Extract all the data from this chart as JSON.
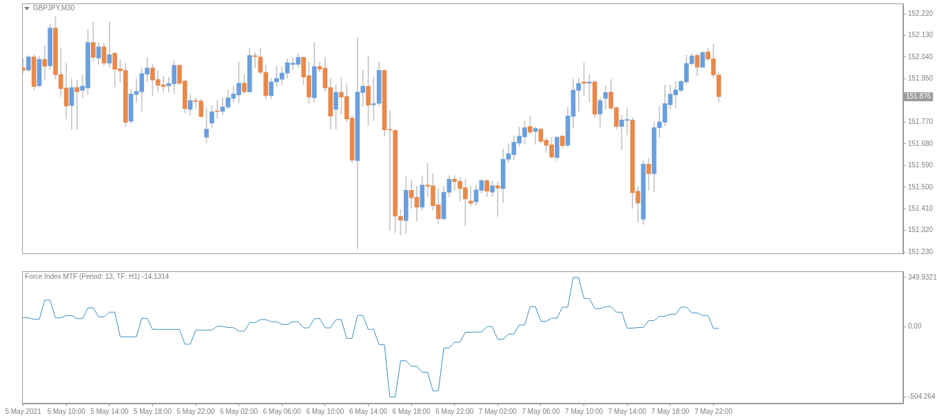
{
  "chart_data": [
    {
      "type": "candlestick",
      "title": "GBPJPY,M30",
      "x": [
        "2021-05-05T06:00",
        "2021-05-05T06:30",
        "2021-05-05T07:00",
        "2021-05-05T07:30",
        "2021-05-05T08:00",
        "2021-05-05T08:30",
        "2021-05-05T09:00",
        "2021-05-05T09:30",
        "2021-05-05T10:00",
        "2021-05-05T10:30",
        "2021-05-05T11:00",
        "2021-05-05T11:30",
        "2021-05-05T12:00",
        "2021-05-05T12:30",
        "2021-05-05T13:00",
        "2021-05-05T13:30",
        "2021-05-05T14:00",
        "2021-05-05T14:30",
        "2021-05-05T15:00",
        "2021-05-05T15:30",
        "2021-05-05T16:00",
        "2021-05-05T16:30",
        "2021-05-05T17:00",
        "2021-05-05T17:30",
        "2021-05-05T18:00",
        "2021-05-05T18:30",
        "2021-05-05T19:00",
        "2021-05-05T19:30",
        "2021-05-05T20:00",
        "2021-05-05T20:30",
        "2021-05-05T21:00",
        "2021-05-05T21:30",
        "2021-05-05T22:00",
        "2021-05-05T22:30",
        "2021-05-05T23:00",
        "2021-05-05T23:30",
        "2021-05-06T00:00",
        "2021-05-06T00:30",
        "2021-05-06T01:00",
        "2021-05-06T01:30",
        "2021-05-06T02:00",
        "2021-05-06T02:30",
        "2021-05-06T03:00",
        "2021-05-06T03:30",
        "2021-05-06T04:00",
        "2021-05-06T04:30",
        "2021-05-06T05:00",
        "2021-05-06T05:30",
        "2021-05-06T06:00",
        "2021-05-06T06:30",
        "2021-05-06T07:00",
        "2021-05-06T07:30",
        "2021-05-06T08:00",
        "2021-05-06T08:30",
        "2021-05-06T09:00",
        "2021-05-06T09:30",
        "2021-05-06T10:00",
        "2021-05-06T10:30",
        "2021-05-06T11:00",
        "2021-05-06T11:30",
        "2021-05-06T12:00",
        "2021-05-06T12:30",
        "2021-05-06T13:00",
        "2021-05-06T13:30",
        "2021-05-06T14:00",
        "2021-05-06T14:30",
        "2021-05-06T15:00",
        "2021-05-06T15:30",
        "2021-05-06T16:00",
        "2021-05-06T16:30",
        "2021-05-06T17:00",
        "2021-05-06T17:30",
        "2021-05-06T18:00",
        "2021-05-06T18:30",
        "2021-05-06T19:00",
        "2021-05-06T19:30",
        "2021-05-06T20:00",
        "2021-05-06T20:30",
        "2021-05-06T21:00",
        "2021-05-06T21:30",
        "2021-05-06T22:00",
        "2021-05-06T22:30",
        "2021-05-06T23:00",
        "2021-05-06T23:30",
        "2021-05-07T00:00",
        "2021-05-07T00:30",
        "2021-05-07T01:00",
        "2021-05-07T01:30",
        "2021-05-07T02:00",
        "2021-05-07T02:30",
        "2021-05-07T03:00",
        "2021-05-07T03:30",
        "2021-05-07T04:00",
        "2021-05-07T04:30",
        "2021-05-07T05:00",
        "2021-05-07T05:30",
        "2021-05-07T06:00",
        "2021-05-07T06:30",
        "2021-05-07T07:00",
        "2021-05-07T07:30",
        "2021-05-07T08:00",
        "2021-05-07T08:30",
        "2021-05-07T09:00",
        "2021-05-07T09:30",
        "2021-05-07T10:00",
        "2021-05-07T10:30",
        "2021-05-07T11:00",
        "2021-05-07T11:30",
        "2021-05-07T12:00",
        "2021-05-07T12:30",
        "2021-05-07T13:00",
        "2021-05-07T13:30",
        "2021-05-07T14:00",
        "2021-05-07T14:30",
        "2021-05-07T15:00",
        "2021-05-07T15:30",
        "2021-05-07T16:00",
        "2021-05-07T16:30",
        "2021-05-07T17:00",
        "2021-05-07T17:30",
        "2021-05-07T18:00",
        "2021-05-07T18:30",
        "2021-05-07T19:00",
        "2021-05-07T19:30",
        "2021-05-07T20:00",
        "2021-05-07T20:30",
        "2021-05-07T21:00",
        "2021-05-07T21:30",
        "2021-05-07T22:00",
        "2021-05-07T22:30"
      ],
      "ohlc": [
        [
          151.995,
          152.033,
          151.975,
          151.986
        ],
        [
          151.986,
          152.047,
          151.979,
          152.041
        ],
        [
          152.041,
          152.051,
          151.905,
          151.918
        ],
        [
          151.921,
          152.044,
          151.916,
          152.031
        ],
        [
          152.031,
          152.087,
          151.948,
          152.002
        ],
        [
          152.004,
          152.178,
          151.988,
          152.161
        ],
        [
          152.161,
          152.209,
          151.948,
          151.967
        ],
        [
          151.968,
          152.079,
          151.876,
          151.909
        ],
        [
          151.912,
          152.015,
          151.783,
          151.837
        ],
        [
          151.839,
          151.952,
          151.74,
          151.914
        ],
        [
          151.914,
          151.944,
          151.74,
          151.896
        ],
        [
          151.902,
          151.966,
          151.871,
          151.92
        ],
        [
          151.912,
          152.155,
          151.885,
          152.101
        ],
        [
          152.101,
          152.187,
          152.024,
          152.039
        ],
        [
          152.036,
          152.101,
          152.011,
          152.083
        ],
        [
          152.083,
          152.096,
          152.006,
          152.015
        ],
        [
          152.015,
          152.187,
          151.997,
          152.05
        ],
        [
          152.056,
          152.06,
          151.916,
          151.99
        ],
        [
          151.992,
          152.029,
          151.934,
          151.983
        ],
        [
          151.985,
          152.015,
          151.751,
          151.769
        ],
        [
          151.774,
          151.907,
          151.765,
          151.887
        ],
        [
          151.885,
          151.952,
          151.853,
          151.898
        ],
        [
          151.896,
          151.997,
          151.815,
          151.972
        ],
        [
          151.969,
          152.038,
          151.936,
          151.995
        ],
        [
          151.995,
          152.011,
          151.88,
          151.945
        ],
        [
          151.947,
          151.984,
          151.894,
          151.923
        ],
        [
          151.925,
          151.961,
          151.894,
          151.918
        ],
        [
          151.921,
          151.957,
          151.894,
          151.931
        ],
        [
          151.929,
          152.024,
          151.889,
          152.006
        ],
        [
          152.006,
          152.01,
          151.925,
          151.931
        ],
        [
          151.941,
          151.944,
          151.808,
          151.826
        ],
        [
          151.823,
          151.885,
          151.799,
          151.86
        ],
        [
          151.86,
          151.871,
          151.826,
          151.856
        ],
        [
          151.858,
          151.866,
          151.79,
          151.793
        ],
        [
          151.707,
          151.829,
          151.684,
          151.741
        ],
        [
          151.766,
          151.839,
          151.749,
          151.813
        ],
        [
          151.817,
          151.86,
          151.785,
          151.814
        ],
        [
          151.815,
          151.873,
          151.801,
          151.833
        ],
        [
          151.833,
          151.903,
          151.826,
          151.871
        ],
        [
          151.869,
          151.921,
          151.853,
          151.887
        ],
        [
          151.883,
          152.02,
          151.849,
          151.932
        ],
        [
          151.932,
          151.97,
          151.889,
          151.896
        ],
        [
          151.896,
          152.079,
          151.894,
          152.047
        ],
        [
          152.046,
          152.06,
          151.997,
          152.042
        ],
        [
          152.041,
          152.079,
          151.97,
          151.977
        ],
        [
          151.977,
          152.006,
          151.866,
          151.88
        ],
        [
          151.88,
          151.952,
          151.866,
          151.937
        ],
        [
          151.937,
          152.002,
          151.916,
          151.952
        ],
        [
          151.948,
          152.002,
          151.925,
          151.974
        ],
        [
          151.974,
          152.033,
          151.952,
          152.017
        ],
        [
          152.01,
          152.038,
          151.988,
          152.015
        ],
        [
          152.01,
          152.056,
          151.997,
          152.039
        ],
        [
          152.039,
          152.042,
          151.925,
          151.957
        ],
        [
          151.963,
          152.02,
          151.849,
          151.874
        ],
        [
          151.871,
          152.101,
          151.853,
          152.001
        ],
        [
          152.001,
          152.02,
          151.979,
          151.99
        ],
        [
          151.994,
          152.038,
          151.898,
          151.912
        ],
        [
          151.914,
          151.952,
          151.74,
          151.795
        ],
        [
          151.823,
          151.925,
          151.74,
          151.894
        ],
        [
          151.894,
          151.957,
          151.803,
          151.874
        ],
        [
          151.877,
          151.93,
          151.772,
          151.783
        ],
        [
          151.787,
          151.799,
          151.601,
          151.612
        ],
        [
          151.61,
          152.122,
          151.244,
          151.895
        ],
        [
          151.893,
          151.988,
          151.835,
          151.92
        ],
        [
          151.919,
          152.045,
          151.755,
          151.84
        ],
        [
          151.842,
          151.958,
          151.776,
          151.847
        ],
        [
          151.848,
          152.021,
          151.837,
          151.985
        ],
        [
          151.985,
          151.987,
          151.712,
          151.738
        ],
        [
          151.739,
          151.818,
          151.32,
          151.737
        ],
        [
          151.736,
          151.738,
          151.311,
          151.38
        ],
        [
          151.379,
          151.407,
          151.301,
          151.363
        ],
        [
          151.361,
          151.543,
          151.306,
          151.487
        ],
        [
          151.487,
          151.528,
          151.412,
          151.456
        ],
        [
          151.458,
          151.504,
          151.359,
          151.417
        ],
        [
          151.417,
          151.548,
          151.403,
          151.509
        ],
        [
          151.509,
          151.601,
          151.46,
          151.504
        ],
        [
          151.506,
          151.557,
          151.403,
          151.423
        ],
        [
          151.427,
          151.494,
          151.349,
          151.369
        ],
        [
          151.369,
          151.504,
          151.364,
          151.479
        ],
        [
          151.479,
          151.548,
          151.46,
          151.533
        ],
        [
          151.533,
          151.548,
          151.485,
          151.523
        ],
        [
          151.525,
          151.538,
          151.441,
          151.494
        ],
        [
          151.498,
          151.533,
          151.34,
          151.451
        ],
        [
          151.443,
          151.504,
          151.422,
          151.433
        ],
        [
          151.439,
          151.509,
          151.427,
          151.489
        ],
        [
          151.487,
          151.533,
          151.475,
          151.527
        ],
        [
          151.527,
          151.533,
          151.46,
          151.483
        ],
        [
          151.479,
          151.525,
          151.46,
          151.506
        ],
        [
          151.506,
          151.523,
          151.378,
          151.496
        ],
        [
          151.494,
          151.658,
          151.436,
          151.616
        ],
        [
          151.616,
          151.68,
          151.601,
          151.639
        ],
        [
          151.635,
          151.712,
          151.615,
          151.687
        ],
        [
          151.683,
          151.75,
          151.668,
          151.712
        ],
        [
          151.709,
          151.774,
          151.678,
          151.747
        ],
        [
          151.752,
          151.796,
          151.721,
          151.728
        ],
        [
          151.731,
          151.75,
          151.678,
          151.744
        ],
        [
          151.741,
          151.746,
          151.683,
          151.69
        ],
        [
          151.695,
          151.707,
          151.644,
          151.674
        ],
        [
          151.676,
          151.707,
          151.62,
          151.625
        ],
        [
          151.623,
          151.714,
          151.61,
          151.707
        ],
        [
          151.712,
          151.717,
          151.663,
          151.672
        ],
        [
          151.674,
          151.832,
          151.668,
          151.796
        ],
        [
          151.794,
          151.948,
          151.746,
          151.903
        ],
        [
          151.902,
          151.953,
          151.813,
          151.931
        ],
        [
          151.937,
          152.016,
          151.881,
          151.931
        ],
        [
          151.932,
          151.968,
          151.852,
          151.937
        ],
        [
          151.937,
          151.944,
          151.789,
          151.803
        ],
        [
          151.804,
          151.871,
          151.75,
          151.86
        ],
        [
          151.868,
          151.921,
          151.823,
          151.893
        ],
        [
          151.895,
          151.948,
          151.823,
          151.828
        ],
        [
          151.83,
          151.832,
          151.741,
          151.752
        ],
        [
          151.752,
          151.799,
          151.654,
          151.779
        ],
        [
          151.777,
          151.83,
          151.717,
          151.781
        ],
        [
          151.779,
          151.789,
          151.412,
          151.477
        ],
        [
          151.483,
          151.502,
          151.354,
          151.434
        ],
        [
          151.367,
          151.61,
          151.345,
          151.596
        ],
        [
          151.596,
          151.62,
          151.485,
          151.556
        ],
        [
          151.556,
          151.77,
          151.48,
          151.747
        ],
        [
          151.747,
          151.837,
          151.707,
          151.771
        ],
        [
          151.77,
          151.924,
          151.755,
          151.847
        ],
        [
          151.842,
          151.924,
          151.823,
          151.886
        ],
        [
          151.883,
          151.939,
          151.828,
          151.904
        ],
        [
          151.902,
          151.944,
          151.895,
          151.939
        ],
        [
          151.937,
          152.05,
          151.929,
          152.014
        ],
        [
          152.013,
          152.055,
          152.006,
          152.045
        ],
        [
          152.047,
          152.055,
          151.963,
          151.998
        ],
        [
          151.998,
          152.064,
          151.997,
          152.059
        ],
        [
          152.062,
          152.079,
          152.026,
          152.032
        ],
        [
          152.033,
          152.093,
          151.953,
          151.966
        ],
        [
          151.966,
          151.977,
          151.852,
          151.876
        ]
      ],
      "colors": [
        "#e8894b",
        "#6a9fdc",
        "#e8894b",
        "#6a9fdc",
        "#e8894b",
        "#6a9fdc",
        "#e8894b",
        "#e8894b",
        "#e8894b",
        "#6a9fdc",
        "#e8894b",
        "#6a9fdc",
        "#6a9fdc",
        "#e8894b",
        "#6a9fdc",
        "#e8894b",
        "#6a9fdc",
        "#e8894b",
        "#e8894b",
        "#e8894b",
        "#6a9fdc",
        "#6a9fdc",
        "#6a9fdc",
        "#6a9fdc",
        "#e8894b",
        "#e8894b",
        "#e8894b",
        "#6a9fdc",
        "#6a9fdc",
        "#e8894b",
        "#e8894b",
        "#6a9fdc",
        "#e8894b",
        "#e8894b",
        "#6a9fdc",
        "#6a9fdc",
        "#e8894b",
        "#6a9fdc",
        "#6a9fdc",
        "#6a9fdc",
        "#6a9fdc",
        "#e8894b",
        "#6a9fdc",
        "#e8894b",
        "#e8894b",
        "#e8894b",
        "#6a9fdc",
        "#6a9fdc",
        "#6a9fdc",
        "#6a9fdc",
        "#6a9fdc",
        "#6a9fdc",
        "#e8894b",
        "#e8894b",
        "#6a9fdc",
        "#e8894b",
        "#e8894b",
        "#e8894b",
        "#6a9fdc",
        "#e8894b",
        "#e8894b",
        "#e8894b",
        "#6a9fdc",
        "#6a9fdc",
        "#e8894b",
        "#6a9fdc",
        "#6a9fdc",
        "#e8894b",
        "#e8894b",
        "#e8894b",
        "#e8894b",
        "#6a9fdc",
        "#e8894b",
        "#e8894b",
        "#6a9fdc",
        "#e8894b",
        "#e8894b",
        "#e8894b",
        "#6a9fdc",
        "#6a9fdc",
        "#e8894b",
        "#e8894b",
        "#e8894b",
        "#e8894b",
        "#6a9fdc",
        "#6a9fdc",
        "#e8894b",
        "#6a9fdc",
        "#e8894b",
        "#6a9fdc",
        "#6a9fdc",
        "#6a9fdc",
        "#6a9fdc",
        "#6a9fdc",
        "#e8894b",
        "#6a9fdc",
        "#e8894b",
        "#e8894b",
        "#e8894b",
        "#6a9fdc",
        "#e8894b",
        "#6a9fdc",
        "#6a9fdc",
        "#6a9fdc",
        "#e8894b",
        "#6a9fdc",
        "#e8894b",
        "#6a9fdc",
        "#6a9fdc",
        "#e8894b",
        "#e8894b",
        "#6a9fdc",
        "#6a9fdc",
        "#e8894b",
        "#e8894b",
        "#6a9fdc",
        "#e8894b",
        "#6a9fdc",
        "#6a9fdc",
        "#6a9fdc",
        "#6a9fdc",
        "#6a9fdc",
        "#6a9fdc",
        "#6a9fdc",
        "#6a9fdc",
        "#e8894b",
        "#6a9fdc",
        "#e8894b",
        "#e8894b",
        "#e8894b"
      ],
      "xlim": [
        "2021-05-05T05:54",
        "2021-05-08T15:36"
      ],
      "ylim": [
        151.222,
        152.263
      ],
      "yticks": [
        {
          "value": 152.22,
          "label": "152.220"
        },
        {
          "value": 152.13,
          "label": "152.130"
        },
        {
          "value": 152.04,
          "label": "152.040"
        },
        {
          "value": 151.95,
          "label": "151.950"
        },
        {
          "value": 151.86,
          "label": null
        },
        {
          "value": 151.77,
          "label": "151.770"
        },
        {
          "value": 151.68,
          "label": "151.680"
        },
        {
          "value": 151.59,
          "label": "151.590"
        },
        {
          "value": 151.5,
          "label": "151.500"
        },
        {
          "value": 151.41,
          "label": "151.410"
        },
        {
          "value": 151.32,
          "label": "151.320"
        },
        {
          "value": 151.23,
          "label": "151.230"
        }
      ],
      "tick_labels": "y",
      "annotations": [
        {
          "text": "151.876",
          "y": 151.876
        }
      ]
    },
    {
      "type": "line",
      "title": "Force Index MTF (Period: 13, TF: H1) -14.1314",
      "x": [
        "2021-05-05T06:00",
        "2021-05-05T06:30",
        "2021-05-05T07:00",
        "2021-05-05T07:30",
        "2021-05-05T08:00",
        "2021-05-05T08:30",
        "2021-05-05T09:00",
        "2021-05-05T09:30",
        "2021-05-05T10:00",
        "2021-05-05T10:30",
        "2021-05-05T11:00",
        "2021-05-05T11:30",
        "2021-05-05T12:00",
        "2021-05-05T12:30",
        "2021-05-05T13:00",
        "2021-05-05T13:30",
        "2021-05-05T14:00",
        "2021-05-05T14:30",
        "2021-05-05T15:00",
        "2021-05-05T15:30",
        "2021-05-05T16:00",
        "2021-05-05T16:30",
        "2021-05-05T17:00",
        "2021-05-05T17:30",
        "2021-05-05T18:00",
        "2021-05-05T18:30",
        "2021-05-05T19:00",
        "2021-05-05T19:30",
        "2021-05-05T20:00",
        "2021-05-05T20:30",
        "2021-05-05T21:00",
        "2021-05-05T21:30",
        "2021-05-05T22:00",
        "2021-05-05T22:30",
        "2021-05-05T23:00",
        "2021-05-05T23:30",
        "2021-05-06T00:00",
        "2021-05-06T00:30",
        "2021-05-06T01:00",
        "2021-05-06T01:30",
        "2021-05-06T02:00",
        "2021-05-06T02:30",
        "2021-05-06T03:00",
        "2021-05-06T03:30",
        "2021-05-06T04:00",
        "2021-05-06T04:30",
        "2021-05-06T05:00",
        "2021-05-06T05:30",
        "2021-05-06T06:00",
        "2021-05-06T06:30",
        "2021-05-06T07:00",
        "2021-05-06T07:30",
        "2021-05-06T08:00",
        "2021-05-06T08:30",
        "2021-05-06T09:00",
        "2021-05-06T09:30",
        "2021-05-06T10:00",
        "2021-05-06T10:30",
        "2021-05-06T11:00",
        "2021-05-06T11:30",
        "2021-05-06T12:00",
        "2021-05-06T12:30",
        "2021-05-06T13:00",
        "2021-05-06T13:30",
        "2021-05-06T14:00",
        "2021-05-06T14:30",
        "2021-05-06T15:00",
        "2021-05-06T15:30",
        "2021-05-06T16:00",
        "2021-05-06T16:30",
        "2021-05-06T17:00",
        "2021-05-06T17:30",
        "2021-05-06T18:00",
        "2021-05-06T18:30",
        "2021-05-06T19:00",
        "2021-05-06T19:30",
        "2021-05-06T20:00",
        "2021-05-06T20:30",
        "2021-05-06T21:00",
        "2021-05-06T21:30",
        "2021-05-06T22:00",
        "2021-05-06T22:30",
        "2021-05-06T23:00",
        "2021-05-06T23:30",
        "2021-05-07T00:00",
        "2021-05-07T00:30",
        "2021-05-07T01:00",
        "2021-05-07T01:30",
        "2021-05-07T02:00",
        "2021-05-07T02:30",
        "2021-05-07T03:00",
        "2021-05-07T03:30",
        "2021-05-07T04:00",
        "2021-05-07T04:30",
        "2021-05-07T05:00",
        "2021-05-07T05:30",
        "2021-05-07T06:00",
        "2021-05-07T06:30",
        "2021-05-07T07:00",
        "2021-05-07T07:30",
        "2021-05-07T08:00",
        "2021-05-07T08:30",
        "2021-05-07T09:00",
        "2021-05-07T09:30",
        "2021-05-07T10:00",
        "2021-05-07T10:30",
        "2021-05-07T11:00",
        "2021-05-07T11:30",
        "2021-05-07T12:00",
        "2021-05-07T12:30",
        "2021-05-07T13:00",
        "2021-05-07T13:30",
        "2021-05-07T14:00",
        "2021-05-07T14:30",
        "2021-05-07T15:00",
        "2021-05-07T15:30",
        "2021-05-07T16:00",
        "2021-05-07T16:30",
        "2021-05-07T17:00",
        "2021-05-07T17:30",
        "2021-05-07T18:00",
        "2021-05-07T18:30",
        "2021-05-07T19:00",
        "2021-05-07T19:30",
        "2021-05-07T20:00",
        "2021-05-07T20:30",
        "2021-05-07T21:00",
        "2021-05-07T21:30",
        "2021-05-07T22:00",
        "2021-05-07T22:30"
      ],
      "values": [
        62,
        62,
        51,
        51,
        188,
        188,
        62,
        62,
        78,
        78,
        56,
        56,
        133,
        133,
        69,
        69,
        102,
        102,
        -74,
        -74,
        -74,
        -74,
        58,
        58,
        -21,
        -21,
        -21,
        -21,
        -21,
        -21,
        -127,
        -127,
        -26,
        -26,
        -26,
        -26,
        1,
        1,
        -8,
        -8,
        -34,
        -34,
        27,
        27,
        49,
        49,
        34,
        34,
        14,
        14,
        34,
        34,
        -10,
        -10,
        56,
        56,
        -10,
        -10,
        49,
        49,
        -85,
        -85,
        78,
        78,
        -21,
        -21,
        -131,
        -131,
        -504,
        -504,
        -245,
        -245,
        -285,
        -285,
        -327,
        -327,
        -461,
        -461,
        -153,
        -153,
        -113,
        -113,
        -41,
        -41,
        -40,
        -40,
        -1,
        -1,
        -91,
        -91,
        -55,
        -55,
        10,
        10,
        142,
        142,
        37,
        37,
        59,
        59,
        138,
        138,
        350,
        350,
        200,
        200,
        127,
        127,
        142,
        142,
        102,
        102,
        -12,
        -12,
        -8,
        -8,
        42,
        42,
        72,
        72,
        87,
        87,
        138,
        138,
        97,
        97,
        78,
        78,
        -14,
        -14
      ],
      "color": "#3b8dbd",
      "marker": "none",
      "xlim": [
        "2021-05-05T05:54",
        "2021-05-08T15:36"
      ],
      "xticks": [
        {
          "value": "2021-05-05T06:00",
          "label": "5 May 2021"
        },
        {
          "value": "2021-05-05T10:00",
          "label": "5 May 10:00"
        },
        {
          "value": "2021-05-05T14:00",
          "label": "5 May 14:00"
        },
        {
          "value": "2021-05-05T18:00",
          "label": "5 May 18:00"
        },
        {
          "value": "2021-05-05T22:00",
          "label": "5 May 22:00"
        },
        {
          "value": "2021-05-06T02:00",
          "label": "6 May 02:00"
        },
        {
          "value": "2021-05-06T06:00",
          "label": "6 May 06:00"
        },
        {
          "value": "2021-05-06T10:00",
          "label": "6 May 10:00"
        },
        {
          "value": "2021-05-06T14:00",
          "label": "6 May 14:00"
        },
        {
          "value": "2021-05-06T18:00",
          "label": "6 May 18:00"
        },
        {
          "value": "2021-05-06T22:00",
          "label": "6 May 22:00"
        },
        {
          "value": "2021-05-07T02:00",
          "label": "7 May 02:00"
        },
        {
          "value": "2021-05-07T06:00",
          "label": "7 May 06:00"
        },
        {
          "value": "2021-05-07T10:00",
          "label": "7 May 10:00"
        },
        {
          "value": "2021-05-07T14:00",
          "label": "7 May 14:00"
        },
        {
          "value": "2021-05-07T18:00",
          "label": "7 May 18:00"
        },
        {
          "value": "2021-05-07T22:00",
          "label": "7 May 22:00"
        }
      ],
      "ylim": [
        -551,
        394
      ],
      "yticks": [
        349.9321,
        {
          "value": 0,
          "label": "0.00"
        },
        -504.264
      ]
    }
  ]
}
